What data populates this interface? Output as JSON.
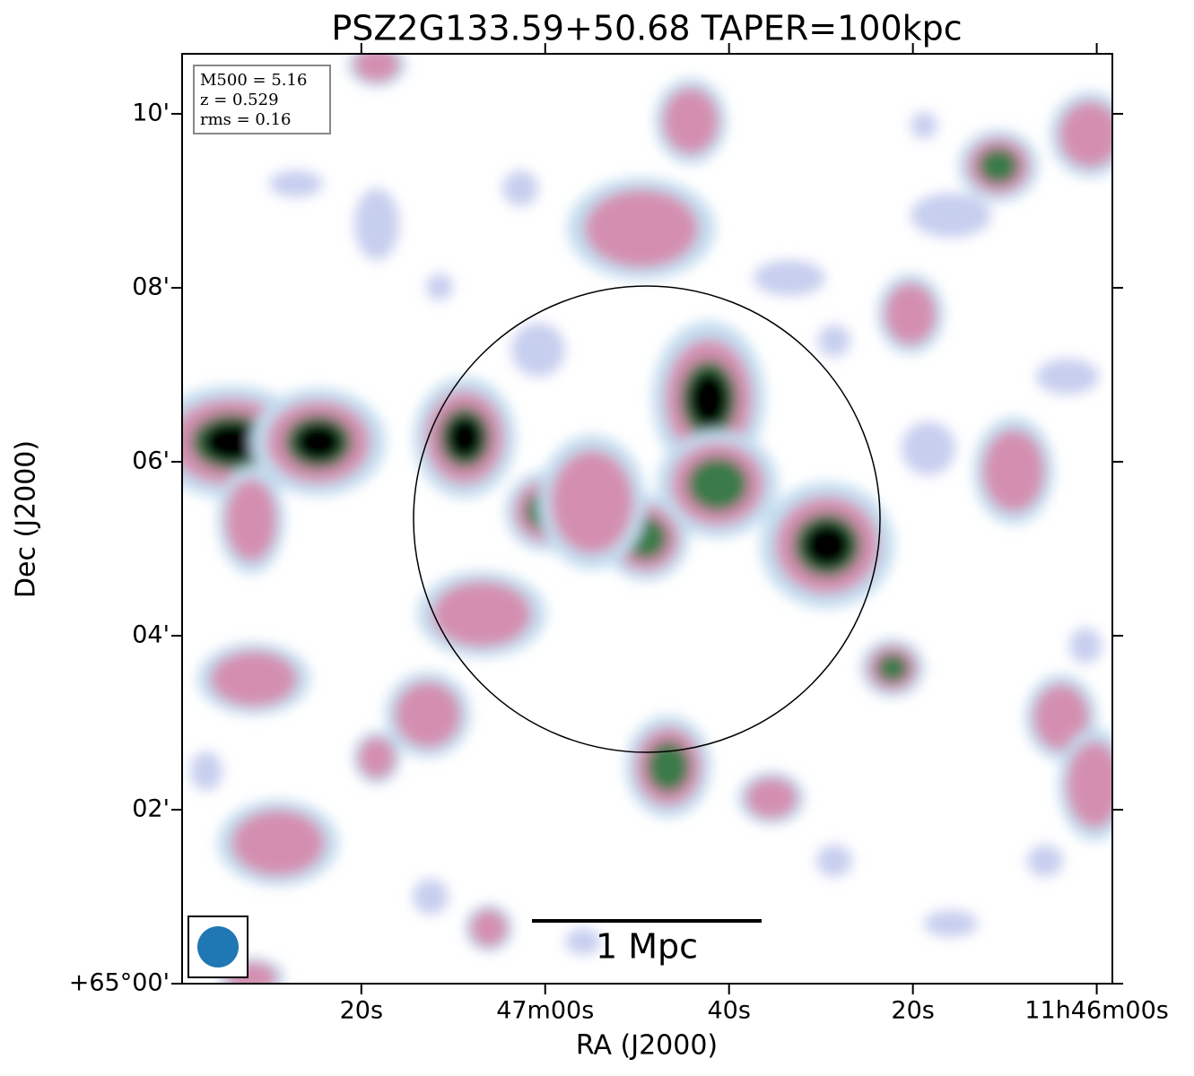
{
  "chart_data": {
    "type": "image",
    "title": "PSZ2G133.59+50.68 TAPER=100kpc",
    "xlabel": "RA (J2000)",
    "ylabel": "Dec (J2000)",
    "xlim": [
      42459.5,
      42358.3
    ],
    "xticks": [
      {
        "value": 42440,
        "label": "20s"
      },
      {
        "value": 42420,
        "label": "47m00s"
      },
      {
        "value": 42400,
        "label": "40s"
      },
      {
        "value": 42380,
        "label": "20s"
      },
      {
        "value": 42360,
        "label": "11h46m00s"
      }
    ],
    "ylim": [
      0,
      10.69
    ],
    "yticks": [
      {
        "value": 0,
        "label": "+65°00'"
      },
      {
        "value": 2,
        "label": "02'"
      },
      {
        "value": 4,
        "label": "04'"
      },
      {
        "value": 6,
        "label": "06'"
      },
      {
        "value": 8,
        "label": "08'"
      },
      {
        "value": 10,
        "label": "10'"
      }
    ],
    "info": [
      "M500 = 5.16",
      "z = 0.529",
      "rms = 0.16"
    ],
    "scalebar_label": "1 Mpc"
  }
}
